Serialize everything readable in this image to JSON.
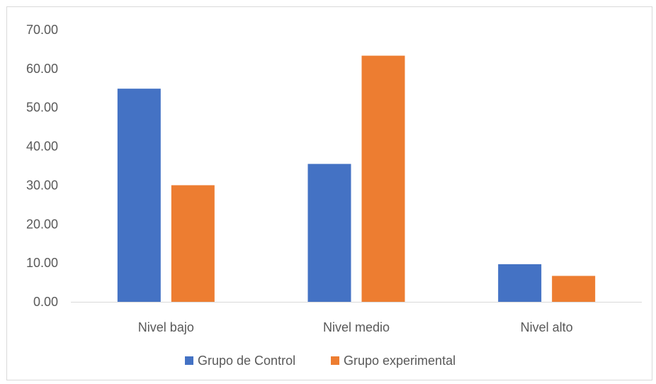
{
  "chart_data": {
    "type": "bar",
    "categories": [
      "Nivel bajo",
      "Nivel medio",
      "Nivel alto"
    ],
    "series": [
      {
        "name": "Grupo de Control",
        "values": [
          54.84,
          35.48,
          9.68
        ],
        "color": "#4472C4"
      },
      {
        "name": "Grupo experimental",
        "values": [
          30.0,
          63.33,
          6.67
        ],
        "color": "#ED7D31"
      }
    ],
    "ylim": [
      0,
      70
    ],
    "yticks": [
      "0.00",
      "10.00",
      "20.00",
      "30.00",
      "40.00",
      "50.00",
      "60.00",
      "70.00"
    ],
    "grid": false,
    "legend_position": "bottom",
    "title": "",
    "xlabel": "",
    "ylabel": ""
  }
}
